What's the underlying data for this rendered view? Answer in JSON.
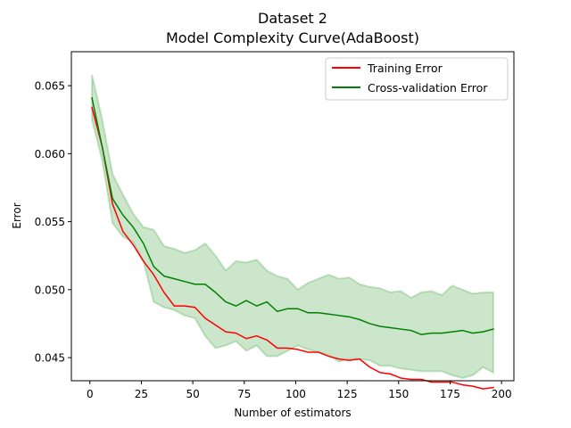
{
  "chart_data": {
    "type": "line",
    "title": "Dataset 2",
    "subtitle": "Model Complexity Curve(AdaBoost)",
    "xlabel": "Number of estimators",
    "ylabel": "Error",
    "xlim": [
      -9,
      206
    ],
    "ylim": [
      0.0433,
      0.0675
    ],
    "x_ticks": [
      0,
      25,
      50,
      75,
      100,
      125,
      150,
      175,
      200
    ],
    "y_ticks": [
      0.045,
      0.05,
      0.055,
      0.06,
      0.065
    ],
    "y_tick_labels": [
      "0.045",
      "0.050",
      "0.055",
      "0.060",
      "0.065"
    ],
    "legend_position": "top-right",
    "grid": false,
    "x": [
      1,
      6,
      11,
      16,
      21,
      26,
      31,
      36,
      41,
      46,
      51,
      56,
      61,
      66,
      71,
      76,
      81,
      86,
      91,
      96,
      101,
      106,
      111,
      116,
      121,
      126,
      131,
      136,
      141,
      146,
      151,
      156,
      161,
      166,
      171,
      176,
      181,
      186,
      191,
      196
    ],
    "series": [
      {
        "name": "Training Error",
        "color": "#ff0000",
        "values": [
          0.0634,
          0.0605,
          0.0563,
          0.0543,
          0.0533,
          0.0521,
          0.0511,
          0.0498,
          0.0488,
          0.0488,
          0.0487,
          0.0479,
          0.0474,
          0.0469,
          0.0468,
          0.0464,
          0.0466,
          0.0463,
          0.0457,
          0.0457,
          0.0456,
          0.0454,
          0.0454,
          0.0451,
          0.0449,
          0.0448,
          0.0449,
          0.0443,
          0.0439,
          0.0438,
          0.0435,
          0.0434,
          0.0434,
          0.0432,
          0.0432,
          0.0432,
          0.043,
          0.0429,
          0.0427,
          0.0428
        ]
      },
      {
        "name": "Cross-validation Error",
        "color": "#008000",
        "values": [
          0.0641,
          0.0605,
          0.0567,
          0.0555,
          0.0546,
          0.0534,
          0.0517,
          0.051,
          0.0508,
          0.0506,
          0.0504,
          0.0504,
          0.0498,
          0.0491,
          0.0488,
          0.0492,
          0.0488,
          0.0491,
          0.0484,
          0.0486,
          0.0486,
          0.0483,
          0.0483,
          0.0482,
          0.0481,
          0.048,
          0.0478,
          0.0475,
          0.0473,
          0.0472,
          0.0471,
          0.047,
          0.0467,
          0.0468,
          0.0468,
          0.0469,
          0.047,
          0.0468,
          0.0469,
          0.0471
        ],
        "band_upper": [
          0.0658,
          0.0625,
          0.0585,
          0.057,
          0.0556,
          0.0546,
          0.0544,
          0.0532,
          0.053,
          0.0527,
          0.0529,
          0.0534,
          0.0525,
          0.0514,
          0.0521,
          0.052,
          0.0522,
          0.0514,
          0.051,
          0.0508,
          0.05,
          0.0505,
          0.0508,
          0.0511,
          0.0508,
          0.0509,
          0.0504,
          0.0502,
          0.0501,
          0.0498,
          0.0499,
          0.0494,
          0.0498,
          0.0499,
          0.0496,
          0.0503,
          0.05,
          0.0497,
          0.0498,
          0.0498
        ],
        "band_lower": [
          0.0625,
          0.0595,
          0.0549,
          0.0539,
          0.0535,
          0.0521,
          0.0491,
          0.0487,
          0.0485,
          0.0481,
          0.0479,
          0.0466,
          0.0457,
          0.0459,
          0.0462,
          0.0455,
          0.0459,
          0.0451,
          0.0451,
          0.0455,
          0.0459,
          0.0456,
          0.0454,
          0.0452,
          0.0447,
          0.0449,
          0.0449,
          0.0448,
          0.0444,
          0.0444,
          0.0442,
          0.0441,
          0.044,
          0.044,
          0.044,
          0.0437,
          0.0435,
          0.0437,
          0.0443,
          0.0439
        ],
        "band_color": "#008000"
      }
    ]
  }
}
